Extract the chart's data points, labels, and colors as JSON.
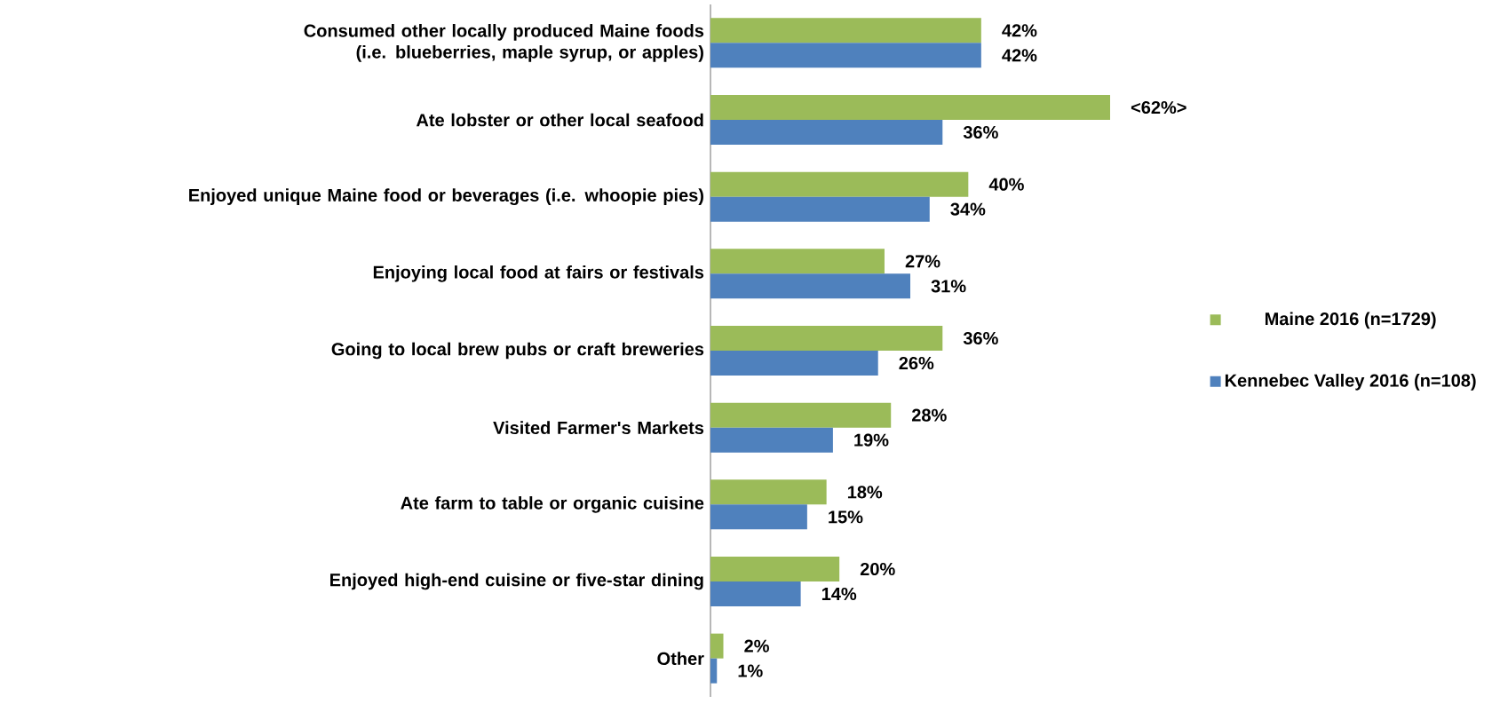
{
  "chart_data": {
    "type": "bar",
    "orientation": "horizontal",
    "legend": "right",
    "categories": [
      "Consumed other locally produced Maine foods (i.e. blueberries, maple syrup, or apples)",
      "Ate lobster or other local seafood",
      "Enjoyed unique Maine food or beverages (i.e. whoopie pies)",
      "Enjoying local food at fairs or festivals",
      "Going to local brew pubs or craft breweries",
      "Visited Farmer's Markets",
      "Ate farm to table or organic cuisine",
      "Enjoyed high-end cuisine or five-star dining",
      "Other"
    ],
    "series": [
      {
        "name": "Maine 2016 (n=1729)",
        "color": "#9bbb59",
        "values": [
          42,
          62,
          40,
          27,
          36,
          28,
          18,
          20,
          2
        ],
        "value_labels": [
          "42%",
          "<62%>",
          "40%",
          "27%",
          "36%",
          "28%",
          "18%",
          "20%",
          "2%"
        ]
      },
      {
        "name": "Kennebec Valley 2016 (n=108)",
        "color": "#4f81bd",
        "values": [
          42,
          36,
          34,
          31,
          26,
          19,
          15,
          14,
          1
        ],
        "value_labels": [
          "42%",
          "36%",
          "34%",
          "31%",
          "26%",
          "19%",
          "15%",
          "14%",
          "1%"
        ]
      }
    ]
  }
}
